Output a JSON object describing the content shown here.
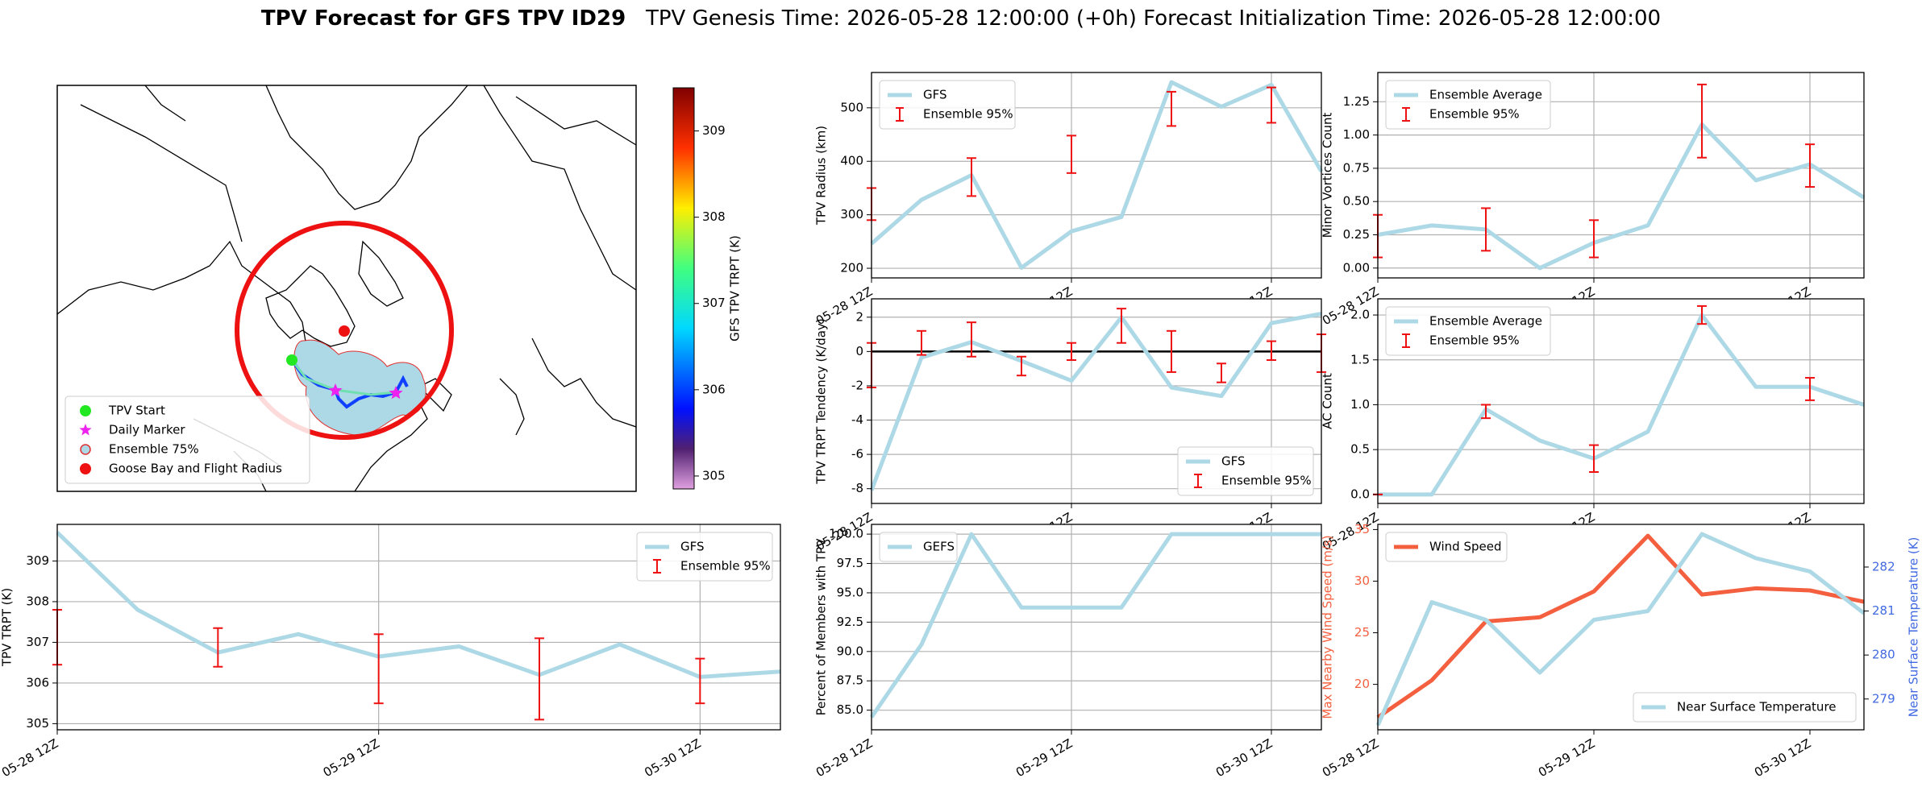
{
  "header": {
    "title": "TPV Forecast for GFS TPV ID29",
    "subtitle": "TPV Genesis Time: 2026-05-28 12:00:00 (+0h)   Forecast Initialization Time: 2026-05-28 12:00:00"
  },
  "chart_data": [
    {
      "type": "map",
      "legend": "lower left",
      "series": [
        {
          "name": "TPV Start",
          "color": "#22e822",
          "marker": "circle"
        },
        {
          "name": "Daily Marker",
          "color": "#ee22ee",
          "marker": "star"
        },
        {
          "name": "Ensemble 75%",
          "color": "#add8e6",
          "marker": "circle-outline"
        },
        {
          "name": "Goose Bay and Flight Radius",
          "color": "#ee1111",
          "marker": "circle"
        }
      ],
      "colorbar": {
        "label": "GFS TPV TRPT (K)",
        "lim": [
          304.85,
          309.5
        ],
        "ticks": [
          305,
          306,
          307,
          308,
          309
        ]
      }
    },
    {
      "type": "line",
      "ylabel": "TPV TRPT (K)",
      "categories": [
        "05-28 12Z",
        null,
        null,
        null,
        "05-29 12Z",
        null,
        null,
        null,
        "05-30 12Z",
        null
      ],
      "ylim": [
        304.85,
        309.9
      ],
      "yticks": [
        305,
        306,
        307,
        308,
        309
      ],
      "grid": true,
      "legend": "upper right",
      "series": [
        {
          "name": "GFS",
          "color": "#add8e6",
          "values": [
            309.7,
            307.8,
            306.75,
            307.2,
            306.65,
            306.9,
            306.2,
            306.95,
            306.15,
            306.28
          ]
        },
        {
          "name": "Ensemble 95%",
          "type": "errorbar",
          "color": "#ee1111",
          "low": [
            306.45,
            null,
            306.4,
            null,
            305.5,
            null,
            305.1,
            null,
            305.5,
            null
          ],
          "high": [
            307.8,
            null,
            307.35,
            null,
            307.2,
            null,
            307.1,
            null,
            306.6,
            null
          ]
        }
      ]
    },
    {
      "type": "line",
      "ylabel": "TPV Radius (km)",
      "categories": [
        "05-28 12Z",
        null,
        null,
        null,
        "05-29 12Z",
        null,
        null,
        null,
        "05-30 12Z",
        null
      ],
      "ylim": [
        182,
        566
      ],
      "yticks": [
        200,
        300,
        400,
        500
      ],
      "grid": true,
      "legend": "upper left",
      "series": [
        {
          "name": "GFS",
          "color": "#add8e6",
          "values": [
            246,
            328,
            374,
            201,
            269,
            296,
            548,
            502,
            543,
            381
          ]
        },
        {
          "name": "Ensemble 95%",
          "type": "errorbar",
          "color": "#ee1111",
          "low": [
            290,
            null,
            335,
            null,
            378,
            null,
            466,
            null,
            472,
            null
          ],
          "high": [
            350,
            null,
            406,
            null,
            448,
            null,
            530,
            null,
            538,
            null
          ]
        }
      ]
    },
    {
      "type": "line",
      "ylabel": "TPV TRPT Tendency (K/day)",
      "categories": [
        "05-28 12Z",
        null,
        null,
        null,
        "05-29 12Z",
        null,
        null,
        null,
        "05-30 12Z",
        null
      ],
      "ylim": [
        -8.86,
        3.07
      ],
      "yticks": [
        -8,
        -6,
        -4,
        -2,
        0,
        2
      ],
      "grid": true,
      "hline": 0,
      "legend": "lower right",
      "series": [
        {
          "name": "GFS",
          "color": "#add8e6",
          "values": [
            -8.1,
            -0.35,
            0.55,
            -0.55,
            -1.7,
            2.0,
            -2.1,
            -2.6,
            1.65,
            2.2
          ]
        },
        {
          "name": "Ensemble 95%",
          "type": "errorbar",
          "color": "#ee1111",
          "low": [
            -2.1,
            -0.2,
            -0.3,
            -1.4,
            -0.5,
            0.5,
            -1.2,
            -1.8,
            -0.5,
            -1.2
          ],
          "high": [
            0.5,
            1.2,
            1.7,
            -0.3,
            0.5,
            2.5,
            1.2,
            -0.7,
            0.6,
            1.0
          ]
        }
      ]
    },
    {
      "type": "line",
      "ylabel": "Percent of Members with TPV",
      "categories": [
        "05-28 12Z",
        null,
        null,
        null,
        "05-29 12Z",
        null,
        null,
        null,
        "05-30 12Z",
        null
      ],
      "ylim": [
        83.33,
        100.83
      ],
      "yticks": [
        {
          "value": 85,
          "label": "85.0"
        },
        {
          "value": 87.5,
          "label": "87.5"
        },
        {
          "value": 90,
          "label": "90.0"
        },
        {
          "value": 92.5,
          "label": "92.5"
        },
        {
          "value": 95,
          "label": "95.0"
        },
        {
          "value": 97.5,
          "label": "97.5"
        },
        {
          "value": 100,
          "label": "100.0"
        }
      ],
      "grid": true,
      "legend": "upper left",
      "series": [
        {
          "name": "GEFS",
          "color": "#add8e6",
          "values": [
            84.4,
            90.6,
            100,
            93.75,
            93.75,
            93.75,
            100,
            100,
            100,
            100
          ]
        }
      ]
    },
    {
      "type": "line",
      "ylabel": "Minor Vortices Count",
      "categories": [
        "05-28 12Z",
        null,
        null,
        null,
        "05-29 12Z",
        null,
        null,
        null,
        "05-30 12Z",
        null
      ],
      "ylim": [
        -0.074,
        1.47
      ],
      "yticks": [
        {
          "value": 0,
          "label": "0.00"
        },
        {
          "value": 0.25,
          "label": "0.25"
        },
        {
          "value": 0.5,
          "label": "0.50"
        },
        {
          "value": 0.75,
          "label": "0.75"
        },
        {
          "value": 1,
          "label": "1.00"
        },
        {
          "value": 1.25,
          "label": "1.25"
        }
      ],
      "grid": true,
      "legend": "upper left",
      "series": [
        {
          "name": "Ensemble Average",
          "color": "#add8e6",
          "values": [
            0.25,
            0.32,
            0.29,
            0,
            0.19,
            0.32,
            1.08,
            0.66,
            0.78,
            0.53
          ]
        },
        {
          "name": "Ensemble 95%",
          "type": "errorbar",
          "color": "#ee1111",
          "low": [
            0.08,
            null,
            0.13,
            null,
            0.08,
            null,
            0.83,
            null,
            0.61,
            null
          ],
          "high": [
            0.4,
            null,
            0.45,
            null,
            0.36,
            null,
            1.38,
            null,
            0.93,
            null
          ]
        }
      ]
    },
    {
      "type": "line",
      "ylabel": "AC Count",
      "categories": [
        "05-28 12Z",
        null,
        null,
        null,
        "05-29 12Z",
        null,
        null,
        null,
        "05-30 12Z",
        null
      ],
      "ylim": [
        -0.1,
        2.18
      ],
      "yticks": [
        {
          "value": 0,
          "label": "0.0"
        },
        {
          "value": 0.5,
          "label": "0.5"
        },
        {
          "value": 1,
          "label": "1.0"
        },
        {
          "value": 1.5,
          "label": "1.5"
        },
        {
          "value": 2,
          "label": "2.0"
        }
      ],
      "grid": true,
      "legend": "upper left",
      "series": [
        {
          "name": "Ensemble Average",
          "color": "#add8e6",
          "values": [
            0,
            0,
            0.95,
            0.6,
            0.4,
            0.7,
            2.0,
            1.2,
            1.2,
            1.0
          ]
        },
        {
          "name": "Ensemble 95%",
          "type": "errorbar",
          "color": "#ee1111",
          "low": [
            0,
            null,
            0.85,
            null,
            0.25,
            null,
            1.9,
            null,
            1.05,
            null
          ],
          "high": [
            0,
            null,
            1.0,
            null,
            0.55,
            null,
            2.1,
            null,
            1.3,
            null
          ]
        }
      ]
    },
    {
      "type": "line",
      "ylabel": "Max Nearby Wind Speed (m/s)",
      "y2label": "Near Surface Temperature (K)",
      "categories": [
        "05-28 12Z",
        null,
        null,
        null,
        "05-29 12Z",
        null,
        null,
        null,
        "05-30 12Z",
        null
      ],
      "ylim": [
        15.6,
        35.5
      ],
      "yticks": [
        20,
        25,
        30,
        35
      ],
      "y2lim": [
        278.3,
        282.97
      ],
      "y2ticks": [
        279,
        280,
        281,
        282
      ],
      "ycolor": "#f4603f",
      "y2color": "#4169e1",
      "grid": false,
      "legend": "upper left",
      "y2legend": "lower right",
      "series": [
        {
          "name": "Wind Speed",
          "color": "#f4603f",
          "values": [
            16.8,
            20.4,
            26.1,
            26.5,
            29.0,
            34.4,
            28.7,
            29.3,
            29.1,
            28.0
          ]
        },
        {
          "name": "Near Surface Temperature",
          "color": "#add8e6",
          "axis": "y2",
          "values": [
            278.4,
            281.2,
            280.8,
            279.6,
            280.8,
            281.0,
            282.75,
            282.2,
            281.9,
            280.95
          ]
        }
      ]
    }
  ]
}
